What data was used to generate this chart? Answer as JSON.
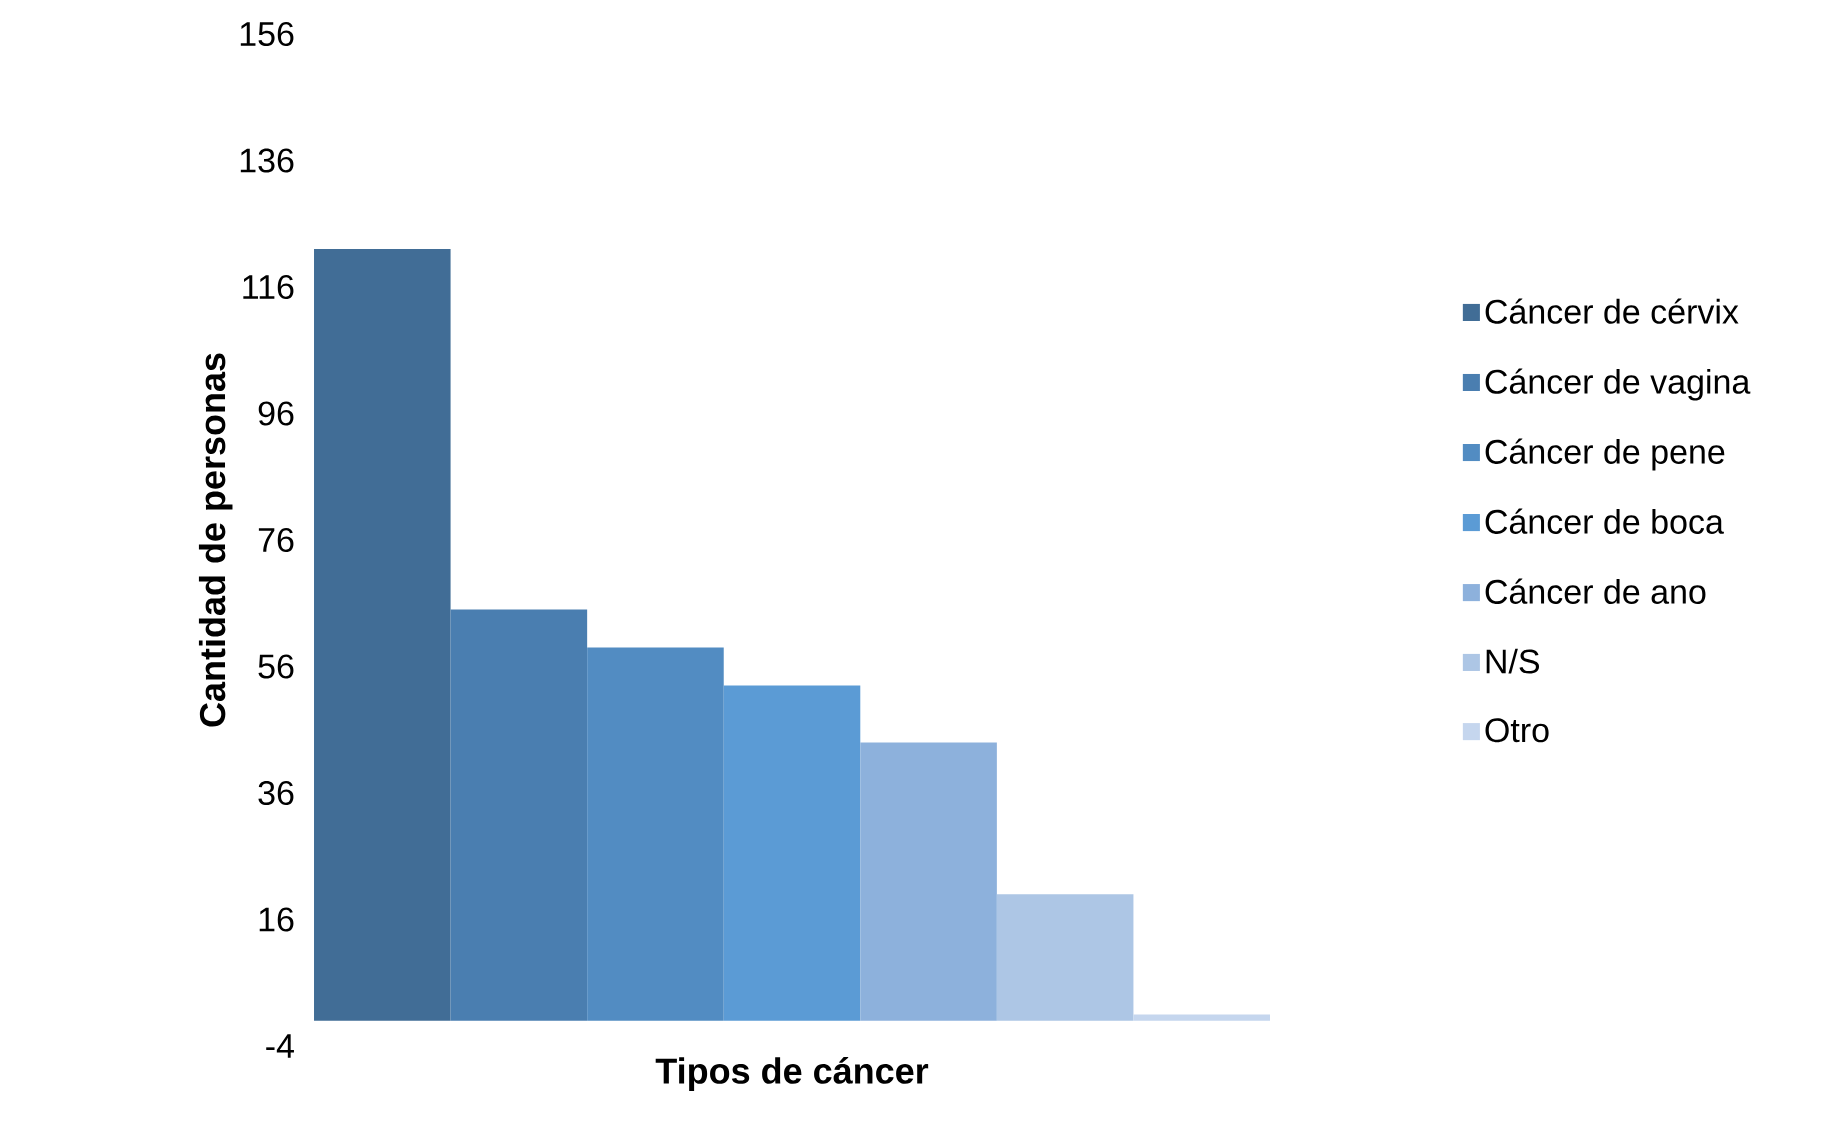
{
  "chart_data": {
    "type": "bar",
    "xlabel": "Tipos de cáncer",
    "ylabel": "Cantidad de personas",
    "categories": [
      null
    ],
    "series": [
      {
        "name": "Cáncer de cérvix",
        "color": "#416d96",
        "values": [
          122
        ]
      },
      {
        "name": "Cáncer de vagina",
        "color": "#4a7eb0",
        "values": [
          65
        ]
      },
      {
        "name": "Cáncer de pene",
        "color": "#528cc2",
        "values": [
          59
        ]
      },
      {
        "name": "Cáncer de boca",
        "color": "#5b9bd5",
        "values": [
          53
        ]
      },
      {
        "name": "Cáncer de ano",
        "color": "#8db1dc",
        "values": [
          44
        ]
      },
      {
        "name": "N/S",
        "color": "#adc6e5",
        "values": [
          20
        ]
      },
      {
        "name": "Otro",
        "color": "#c5d6ee",
        "values": [
          1
        ]
      }
    ],
    "ylim": [
      -4,
      156
    ],
    "yticks": [
      -4,
      16,
      36,
      56,
      76,
      96,
      116,
      136,
      156
    ],
    "grid": false,
    "legend": "right"
  }
}
